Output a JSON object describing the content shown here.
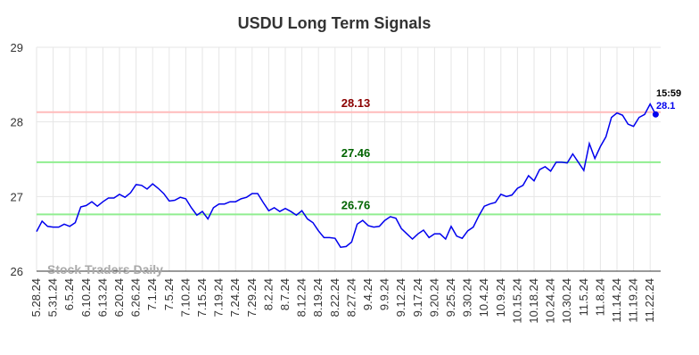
{
  "chart_data": {
    "type": "line",
    "title": "USDU Long Term Signals",
    "watermark": "Stock Traders Daily",
    "ylim": [
      26,
      29
    ],
    "yticks": [
      26,
      27,
      28,
      29
    ],
    "grid": true,
    "categories": [
      "5.28.24",
      null,
      null,
      "5.31.24",
      null,
      null,
      "6.5.24",
      null,
      null,
      "6.10.24",
      null,
      null,
      "6.13.24",
      null,
      null,
      "6.20.24",
      null,
      null,
      "6.26.24",
      null,
      null,
      "7.1.24",
      null,
      null,
      "7.5.24",
      null,
      null,
      "7.10.24",
      null,
      null,
      "7.15.24",
      null,
      null,
      "7.19.24",
      null,
      null,
      "7.24.24",
      null,
      null,
      "7.29.24",
      null,
      null,
      "8.2.24",
      null,
      null,
      "8.7.24",
      null,
      null,
      "8.12.24",
      null,
      null,
      "8.19.24",
      null,
      null,
      "8.22.24",
      null,
      null,
      "8.27.24",
      null,
      null,
      "9.4.24",
      null,
      null,
      "9.9.24",
      null,
      null,
      "9.12.24",
      null,
      null,
      "9.17.24",
      null,
      null,
      "9.20.24",
      null,
      null,
      "9.25.24",
      null,
      null,
      "9.30.24",
      null,
      null,
      "10.4.24",
      null,
      null,
      "10.9.24",
      null,
      null,
      "10.15.24",
      null,
      null,
      "10.18.24",
      null,
      null,
      "10.24.24",
      null,
      null,
      "10.30.24",
      null,
      null,
      "11.5.24",
      null,
      null,
      "11.8.24",
      null,
      null,
      "11.14.24",
      null,
      null,
      "11.19.24",
      null,
      null,
      "11.22.24",
      null
    ],
    "series": [
      {
        "color": "#0000ee",
        "values": [
          26.53,
          26.67,
          26.6,
          26.59,
          26.59,
          26.63,
          26.6,
          26.65,
          26.86,
          26.88,
          26.93,
          26.87,
          26.93,
          26.98,
          26.98,
          27.03,
          26.99,
          27.05,
          27.16,
          27.15,
          27.1,
          27.17,
          27.11,
          27.04,
          26.94,
          26.95,
          26.99,
          26.97,
          26.85,
          26.75,
          26.8,
          26.7,
          26.85,
          26.9,
          26.9,
          26.93,
          26.93,
          26.97,
          26.99,
          27.04,
          27.04,
          26.92,
          26.81,
          26.85,
          26.8,
          26.84,
          26.8,
          26.75,
          26.81,
          26.7,
          26.65,
          26.54,
          26.45,
          26.45,
          26.44,
          26.32,
          26.33,
          26.39,
          26.63,
          26.68,
          26.61,
          26.59,
          26.6,
          26.68,
          26.73,
          26.71,
          26.57,
          26.5,
          26.43,
          26.5,
          26.55,
          26.45,
          26.5,
          26.5,
          26.43,
          26.6,
          26.47,
          26.44,
          26.54,
          26.59,
          26.74,
          26.87,
          26.9,
          26.92,
          27.03,
          27.0,
          27.02,
          27.11,
          27.15,
          27.28,
          27.21,
          27.36,
          27.4,
          27.34,
          27.46,
          27.46,
          27.45,
          27.57,
          27.46,
          27.35,
          27.71,
          27.51,
          27.67,
          27.8,
          28.06,
          28.12,
          28.09,
          27.97,
          27.94,
          28.06,
          28.1,
          28.24,
          28.1
        ]
      }
    ],
    "levels": [
      {
        "value": 28.13,
        "color": "#ffbbbb",
        "label_color": "#8b0000"
      },
      {
        "value": 27.46,
        "color": "#90ee90",
        "label_color": "#006400"
      },
      {
        "value": 26.76,
        "color": "#90ee90",
        "label_color": "#006400"
      }
    ],
    "last_time": "15:59",
    "last_label": "28.1"
  }
}
